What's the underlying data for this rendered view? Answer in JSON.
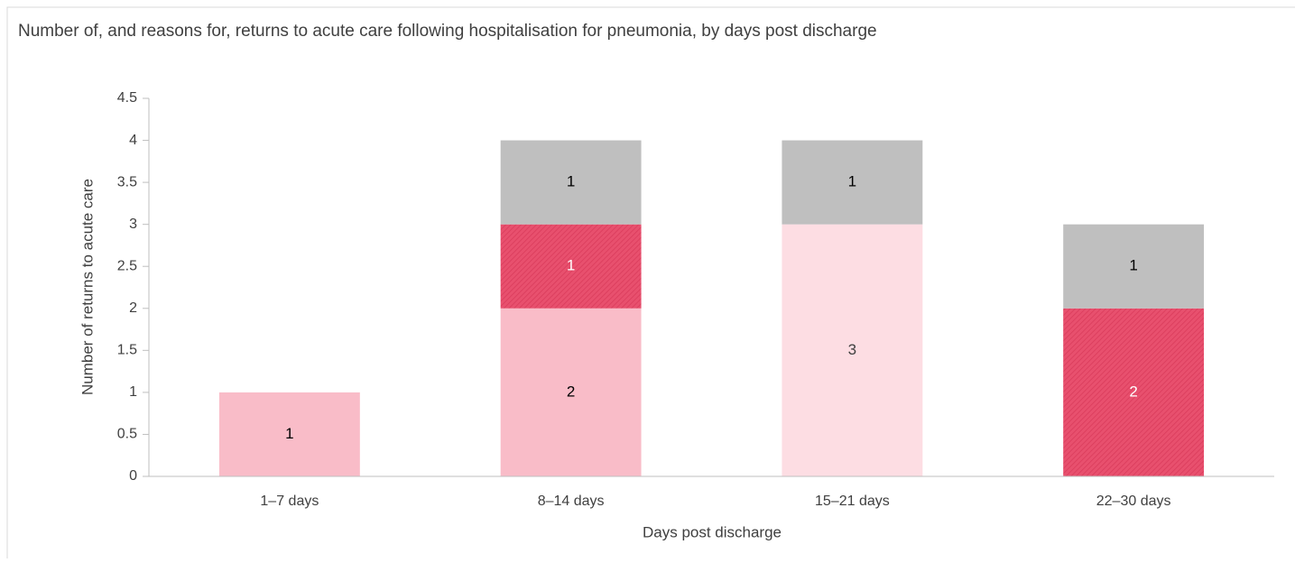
{
  "chart_data": {
    "type": "stacked_bar",
    "title": "Number of, and reasons for, returns to acute care following hospitalisation for pneumonia, by days post discharge",
    "x_label": "Days post discharge",
    "y_label": "Number of returns to acute care",
    "categories": [
      "1–7 days",
      "8–14 days",
      "15–21 days",
      "22–30 days"
    ],
    "series": [
      {
        "color": "#f9bcc8",
        "label_color": "#000000",
        "values": [
          1,
          2,
          null,
          null
        ]
      },
      {
        "color": "#e8506e",
        "hatch": true,
        "label_color": "#ffffff",
        "values": [
          null,
          1,
          null,
          2
        ]
      },
      {
        "color": "#fddde3",
        "label_color": "#404040",
        "values": [
          null,
          null,
          3,
          null
        ]
      },
      {
        "color": "#bfbfbf",
        "label_color": "#000000",
        "values": [
          null,
          1,
          1,
          1
        ]
      }
    ],
    "ylim": [
      0,
      4.5
    ],
    "yticks": [
      0,
      0.5,
      1,
      1.5,
      2,
      2.5,
      3,
      3.5,
      4,
      4.5
    ],
    "grid": false
  }
}
